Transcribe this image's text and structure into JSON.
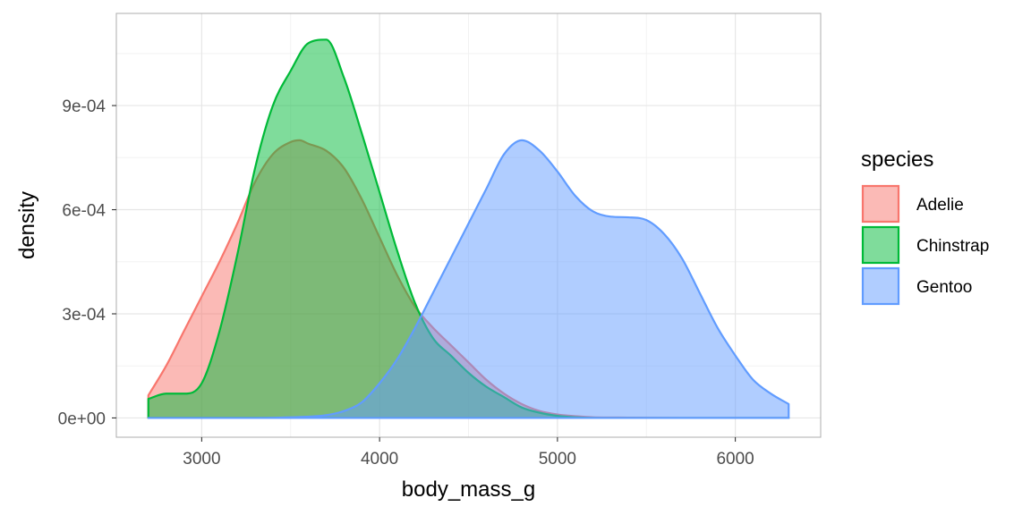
{
  "chart_data": {
    "type": "area",
    "xlabel": "body_mass_g",
    "ylabel": "density",
    "xlim": [
      2520,
      6480
    ],
    "ylim": [
      -5.55e-05,
      0.0011655
    ],
    "x_ticks": [
      3000,
      4000,
      5000,
      6000
    ],
    "x_tick_labels": [
      "3000",
      "4000",
      "5000",
      "6000"
    ],
    "y_ticks": [
      0,
      0.0003,
      0.0006,
      0.0009
    ],
    "y_tick_labels": [
      "0e+00",
      "3e-04",
      "6e-04",
      "9e-04"
    ],
    "grid": true,
    "legend": {
      "title": "species",
      "position": "right"
    },
    "series": [
      {
        "name": "Adelie",
        "line_color": "#F8766D",
        "fill_color": "#F8766D",
        "x": [
          2700,
          2800,
          2900,
          3000,
          3100,
          3200,
          3300,
          3400,
          3500,
          3550,
          3600,
          3700,
          3800,
          3900,
          4000,
          4100,
          4200,
          4300,
          4400,
          4500,
          4600,
          4700,
          4800,
          4900,
          5000,
          5100,
          5200,
          5400,
          5700,
          6000,
          6300
        ],
        "y": [
          6.5e-05,
          0.00015,
          0.00025,
          0.00035,
          0.00045,
          0.00056,
          0.00068,
          0.00076,
          0.000795,
          0.0008,
          0.00079,
          0.00077,
          0.00072,
          0.00063,
          0.00052,
          0.00041,
          0.00032,
          0.00026,
          0.00021,
          0.00016,
          0.00011,
          7e-05,
          4e-05,
          2e-05,
          1e-05,
          5e-06,
          2e-06,
          1e-06,
          0,
          0,
          0
        ]
      },
      {
        "name": "Chinstrap",
        "line_color": "#00BA38",
        "fill_color": "#00BA38",
        "x": [
          2700,
          2800,
          2900,
          3000,
          3100,
          3200,
          3300,
          3400,
          3500,
          3600,
          3700,
          3800,
          3900,
          4000,
          4100,
          4200,
          4300,
          4400,
          4500,
          4600,
          4700,
          4800,
          4900,
          5000,
          5100,
          5300,
          5600,
          6000,
          6300
        ],
        "y": [
          5.5e-05,
          7e-05,
          7e-05,
          0.0001,
          0.00025,
          0.00047,
          0.00072,
          0.0009,
          0.001,
          0.00108,
          0.00109,
          0.00098,
          0.00082,
          0.00065,
          0.00048,
          0.00033,
          0.00023,
          0.00018,
          0.00013,
          9e-05,
          6e-05,
          3e-05,
          1.5e-05,
          6e-06,
          2e-06,
          0,
          0,
          0,
          0
        ]
      },
      {
        "name": "Gentoo",
        "line_color": "#619CFF",
        "fill_color": "#619CFF",
        "x": [
          2700,
          3200,
          3500,
          3700,
          3800,
          3900,
          4000,
          4100,
          4200,
          4300,
          4400,
          4500,
          4600,
          4700,
          4800,
          4900,
          5000,
          5100,
          5200,
          5300,
          5400,
          5500,
          5600,
          5700,
          5800,
          5900,
          6000,
          6100,
          6200,
          6300
        ],
        "y": [
          0,
          0,
          2e-06,
          8e-06,
          2e-05,
          4.5e-05,
          0.0001,
          0.00017,
          0.00026,
          0.00036,
          0.00046,
          0.00056,
          0.00066,
          0.00076,
          0.0008,
          0.00077,
          0.00071,
          0.00064,
          0.000595,
          0.00058,
          0.000578,
          0.00057,
          0.00053,
          0.00046,
          0.00036,
          0.00026,
          0.00018,
          0.00011,
          7e-05,
          4e-05
        ]
      }
    ]
  }
}
